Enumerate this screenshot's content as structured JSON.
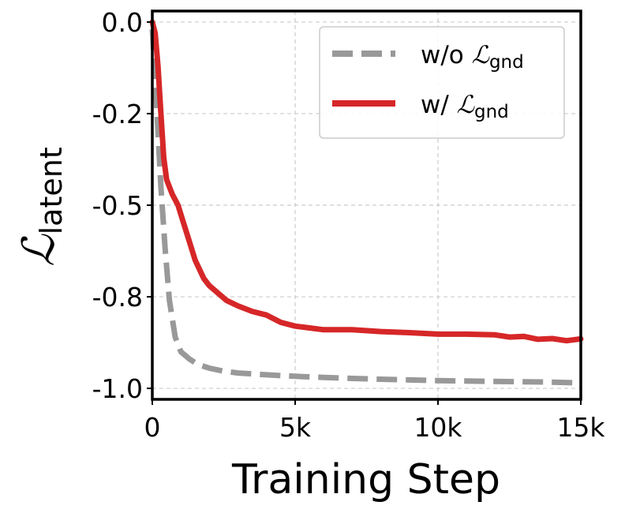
{
  "chart_data": {
    "type": "line",
    "title": "",
    "xlabel": "Training Step",
    "ylabel": {
      "symbol": "ℒ",
      "subscript": "latent"
    },
    "xlim": [
      0,
      15000
    ],
    "ylim": [
      -1.03,
      0.03
    ],
    "x_ticks": [
      0,
      5000,
      10000,
      15000
    ],
    "x_tick_labels": [
      "0",
      "5k",
      "10k",
      "15k"
    ],
    "y_ticks": [
      0.0,
      -0.25,
      -0.5,
      -0.75,
      -1.0
    ],
    "y_tick_labels": [
      "0.0",
      "-0.2",
      "-0.5",
      "-0.8",
      "-1.0"
    ],
    "grid": true,
    "legend_position": "top-right",
    "series": [
      {
        "name": {
          "prefix": "w/o ",
          "symbol": "ℒ",
          "subscript": "gnd"
        },
        "color": "#999999",
        "style": "dashed",
        "x": [
          0,
          100,
          200,
          300,
          450,
          600,
          800,
          1000,
          1300,
          1600,
          2000,
          2500,
          3000,
          4000,
          5000,
          6000,
          7000,
          8000,
          9000,
          10000,
          11000,
          12000,
          13000,
          14000,
          15000
        ],
        "y": [
          -0.02,
          -0.15,
          -0.3,
          -0.45,
          -0.62,
          -0.76,
          -0.86,
          -0.9,
          -0.92,
          -0.935,
          -0.945,
          -0.953,
          -0.958,
          -0.963,
          -0.967,
          -0.97,
          -0.973,
          -0.975,
          -0.977,
          -0.979,
          -0.98,
          -0.981,
          -0.982,
          -0.983,
          -0.985
        ]
      },
      {
        "name": {
          "prefix": "w/ ",
          "symbol": "ℒ",
          "subscript": "gnd"
        },
        "color": "#d62728",
        "style": "solid",
        "x": [
          0,
          100,
          200,
          300,
          400,
          500,
          700,
          900,
          1100,
          1300,
          1500,
          1800,
          2000,
          2300,
          2600,
          3000,
          3500,
          4000,
          4500,
          5000,
          5500,
          6000,
          7000,
          8000,
          9000,
          10000,
          11000,
          12000,
          12500,
          13000,
          13500,
          14000,
          14500,
          15000
        ],
        "y": [
          0.0,
          -0.03,
          -0.12,
          -0.25,
          -0.37,
          -0.43,
          -0.47,
          -0.5,
          -0.55,
          -0.6,
          -0.65,
          -0.7,
          -0.72,
          -0.74,
          -0.76,
          -0.775,
          -0.79,
          -0.8,
          -0.82,
          -0.83,
          -0.835,
          -0.84,
          -0.84,
          -0.845,
          -0.848,
          -0.852,
          -0.852,
          -0.854,
          -0.86,
          -0.858,
          -0.866,
          -0.864,
          -0.87,
          -0.865
        ]
      }
    ]
  }
}
